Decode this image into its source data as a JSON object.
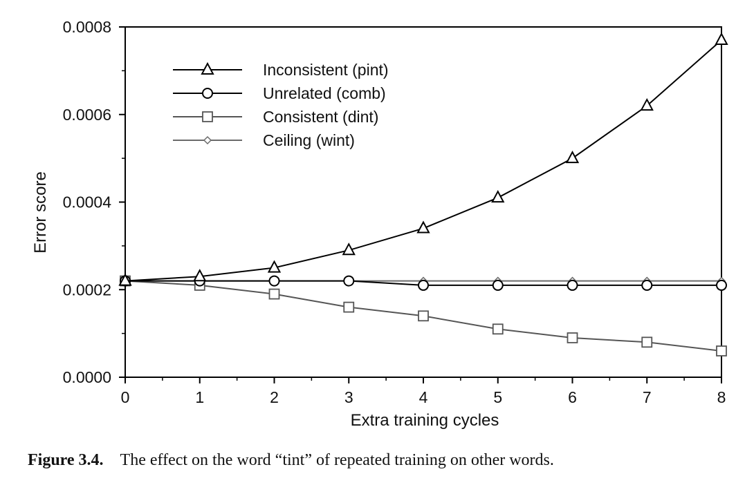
{
  "chart_data": {
    "type": "line",
    "x": [
      0,
      1,
      2,
      3,
      4,
      5,
      6,
      7,
      8
    ],
    "xlabel": "Extra training cycles",
    "ylabel": "Error score",
    "xlim": [
      0,
      8
    ],
    "ylim": [
      0,
      0.0008
    ],
    "x_ticks": [
      "0",
      "1",
      "2",
      "3",
      "4",
      "5",
      "6",
      "7",
      "8"
    ],
    "y_ticks": [
      0,
      0.0002,
      0.0004,
      0.0006,
      0.0008
    ],
    "y_tick_labels": [
      "0.0000",
      "0.0002",
      "0.0004",
      "0.0006",
      "0.0008"
    ],
    "grid": false,
    "legend_position": "top-left",
    "series": [
      {
        "name": "Inconsistent (pint)",
        "marker": "triangle",
        "color": "#000000",
        "values": [
          0.00022,
          0.00023,
          0.00025,
          0.00029,
          0.00034,
          0.00041,
          0.0005,
          0.00062,
          0.00077
        ]
      },
      {
        "name": "Unrelated (comb)",
        "marker": "circle",
        "color": "#000000",
        "values": [
          0.00022,
          0.00022,
          0.00022,
          0.00022,
          0.00021,
          0.00021,
          0.00021,
          0.00021,
          0.00021
        ]
      },
      {
        "name": "Consistent (dint)",
        "marker": "square",
        "color": "#555555",
        "values": [
          0.00022,
          0.00021,
          0.00019,
          0.00016,
          0.00014,
          0.00011,
          9e-05,
          8e-05,
          6e-05
        ]
      },
      {
        "name": "Ceiling (wint)",
        "marker": "diamond",
        "color": "#6a6a6a",
        "values": [
          0.00022,
          0.00022,
          0.00022,
          0.00022,
          0.00022,
          0.00022,
          0.00022,
          0.00022,
          0.00022
        ]
      }
    ]
  },
  "caption": {
    "label": "Figure 3.4.",
    "text": "The effect on the word “tint” of repeated training on other words."
  }
}
